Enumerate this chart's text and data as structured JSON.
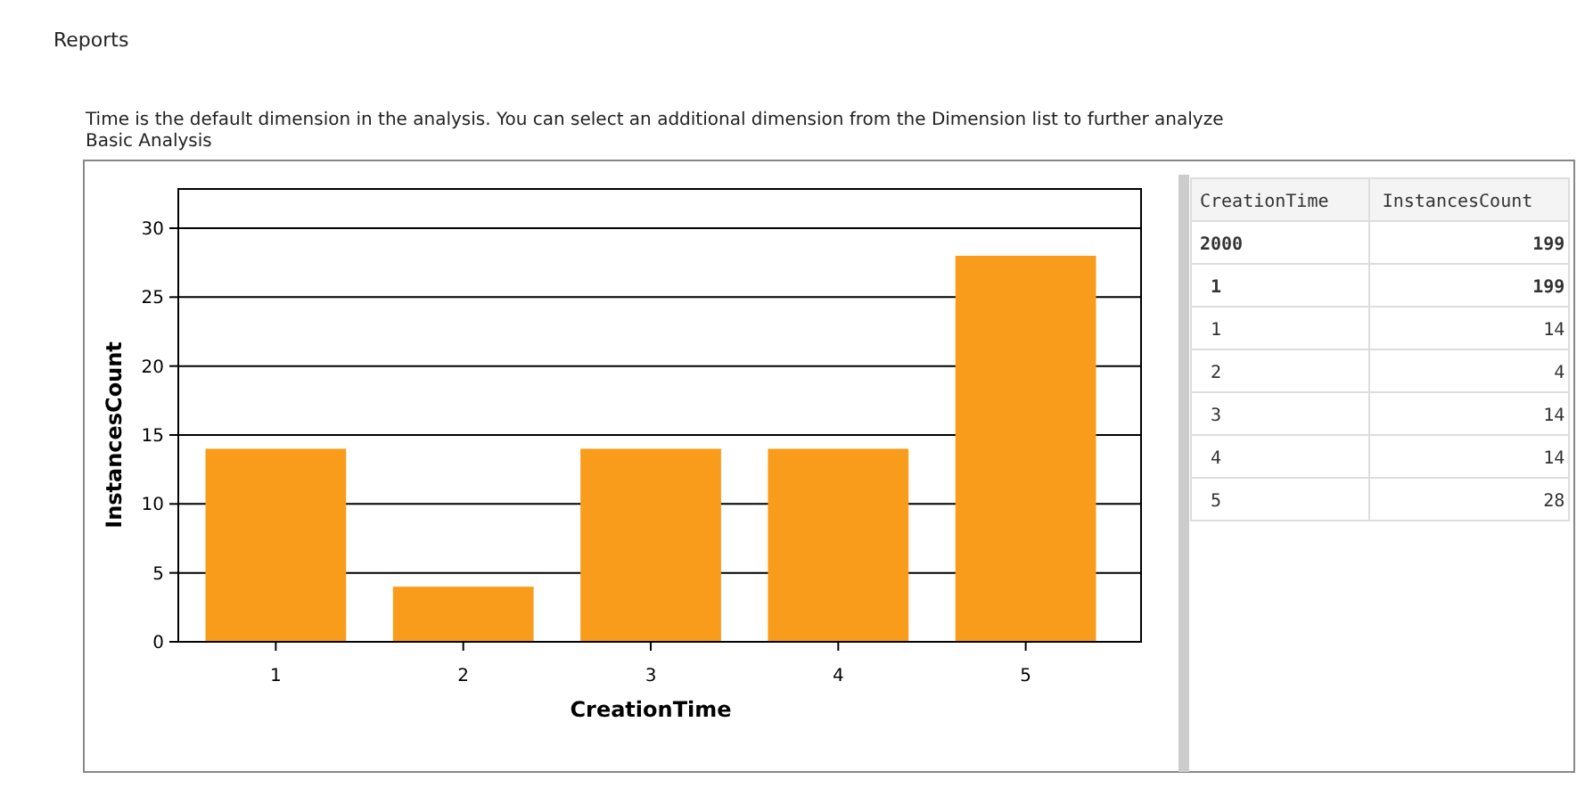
{
  "chart_data": [
    {
      "type": "bar",
      "title": "Reports",
      "subtitle": "Time is the default dimension in the analysis. You can select an additional dimension from the Dimension list to further analyze",
      "annotations": [
        "Basic Analysis"
      ],
      "xlabel": "CreationTime",
      "ylabel": "InstancesCount",
      "categories": [
        "1",
        "2",
        "3",
        "4",
        "5"
      ],
      "values": [
        14,
        4,
        14,
        14,
        28
      ],
      "color": "#fa9c1b",
      "ylim": [
        0,
        30
      ],
      "yticks": [
        0,
        5,
        10,
        15,
        20,
        25,
        30
      ],
      "grid": "y"
    },
    {
      "type": "other",
      "annotations": [
        "CreationTime InstancesCount",
        "2000 199",
        "1 199",
        "1 14",
        "2 4",
        "3 14",
        "4 14",
        "5 28"
      ]
    }
  ]
}
